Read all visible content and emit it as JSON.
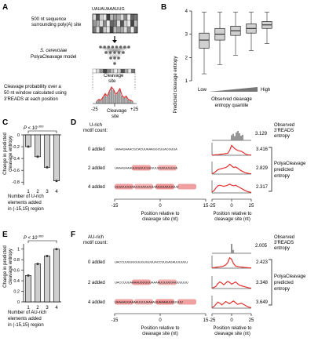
{
  "panels": {
    "A": {
      "letter": "A",
      "sequence_top": "UAUAUAAAUUG",
      "label_500nt": [
        "500 nt sequence",
        "surrounding poly(A) site"
      ],
      "model_label": [
        "S. cerevisiae",
        "PolyaCleavage model"
      ],
      "prob_label": [
        "Cleavage probability over a",
        "50 nt window calculated using",
        "3'READS at each position"
      ],
      "cleavage_label": [
        "Cleavage",
        "site"
      ],
      "tick_minus": "-25",
      "tick_plus": "+25"
    },
    "B": {
      "letter": "B",
      "ylabel": "Predicted cleavage entropy",
      "yticks": [
        "4",
        "3",
        "2",
        "1"
      ],
      "low": "Low",
      "high": "High",
      "xlabel": [
        "Observed cleavage",
        "entropy quantile"
      ]
    },
    "C": {
      "letter": "C",
      "pval": "P < 10",
      "pval_exp": "-300",
      "ylabel": [
        "Change in predicted",
        "cleavage entropy"
      ],
      "yticks": [
        "0",
        "-0.2",
        "-0.4",
        "-0.6",
        "-0.8"
      ],
      "xticks": [
        "1",
        "2",
        "3",
        "4"
      ],
      "xlabel": [
        "Number of U-rich",
        "elements added",
        "in (-15,15) region"
      ]
    },
    "D": {
      "letter": "D",
      "motif_label": [
        "U-rich",
        "motif count:"
      ],
      "rows": [
        {
          "label": "0 added",
          "seq": "UAAAUAAACGCACUUAAAGGCUUACGUUA",
          "value": "3.416"
        },
        {
          "label": "2 added",
          "seq": "UAAAUAAAUUUUUUCUUUUUUUUUUUUUA",
          "value": "2.829"
        },
        {
          "label": "4 added",
          "seq": "UUUUUUUUUUUUUUUUUUUUUUUUUUUUU",
          "value": "2.317"
        }
      ],
      "observed_value": "3.129",
      "observed_label": [
        "Observed",
        "3'READS",
        "entropy"
      ],
      "predicted_label": [
        "PolyaCleavage",
        "predicted",
        "entropy"
      ],
      "seq_xticks": [
        "-15",
        "0",
        "15"
      ],
      "seq_xlabel": [
        "Position relative to",
        "cleavage site (nt)"
      ],
      "plot_xticks": [
        "-25",
        "0",
        "25"
      ],
      "plot_xlabel": [
        "Position relative to",
        "cleavage site (nt)"
      ]
    },
    "E": {
      "letter": "E",
      "pval": "P < 10",
      "pval_exp": "-300",
      "ylabel": [
        "Change in predicted",
        "cleavage entropy"
      ],
      "yticks": [
        "1",
        "0.8",
        "0.6",
        "0.4",
        "0.2",
        "0"
      ],
      "xticks": [
        "1",
        "2",
        "3",
        "4"
      ],
      "xlabel": [
        "Number of AU-rich",
        "elements added",
        "in (-15,15) region"
      ]
    },
    "F": {
      "letter": "F",
      "motif_label": [
        "AU-rich",
        "motif count:"
      ],
      "rows": [
        {
          "label": "0 added",
          "seq": "UACCUUUUGGUUGUGUUUACCUUGAGAUUUUUU",
          "value": "2.423"
        },
        {
          "label": "2 added",
          "seq": "UACCUUUAAAAUGUUUUAAAAUUUUUGAUUUUUU",
          "value": "3.348"
        },
        {
          "label": "4 added",
          "seq": "UAAAAUGAAAAUUUUAAAAUUAAAAUUUUUUU",
          "value": "3.649"
        }
      ],
      "observed_value": "2.005",
      "observed_label": [
        "Observed",
        "3'READS",
        "entropy"
      ],
      "predicted_label": [
        "PolyaCleavage",
        "predicted",
        "entropy"
      ],
      "seq_xticks": [
        "-15",
        "0",
        "15"
      ],
      "seq_xlabel": [
        "Position relative to",
        "cleavage site (nt)"
      ],
      "plot_xticks": [
        "-25",
        "0",
        "25"
      ],
      "plot_xlabel": [
        "Position relative to",
        "cleavage site (nt)"
      ]
    }
  },
  "chart_data": [
    {
      "panel": "B",
      "type": "box",
      "categories": [
        "q1",
        "q2",
        "q3",
        "q4",
        "q5"
      ],
      "boxes": [
        {
          "min": 1.3,
          "q1": 2.4,
          "median": 2.75,
          "q3": 3.05,
          "max": 3.95
        },
        {
          "min": 1.7,
          "q1": 2.75,
          "median": 3.0,
          "q3": 3.25,
          "max": 3.95
        },
        {
          "min": 2.1,
          "q1": 2.95,
          "median": 3.15,
          "q3": 3.35,
          "max": 3.95
        },
        {
          "min": 2.3,
          "q1": 3.05,
          "median": 3.25,
          "q3": 3.45,
          "max": 3.95
        },
        {
          "min": 2.6,
          "q1": 3.25,
          "median": 3.4,
          "q3": 3.55,
          "max": 3.95
        }
      ],
      "ylim": [
        1,
        4
      ],
      "grid": false
    },
    {
      "panel": "C",
      "type": "bar",
      "categories": [
        "1",
        "2",
        "3",
        "4"
      ],
      "values": [
        -0.2,
        -0.37,
        -0.55,
        -0.78
      ],
      "ylim": [
        -0.85,
        0
      ],
      "colors": {
        "bar": "#cfcfcf",
        "point": "#333333"
      }
    },
    {
      "panel": "E",
      "type": "bar",
      "categories": [
        "1",
        "2",
        "3",
        "4"
      ],
      "values": [
        0.5,
        0.72,
        0.87,
        1.0
      ],
      "ylim": [
        0,
        1.1
      ],
      "colors": {
        "bar": "#cfcfcf",
        "point": "#333333"
      }
    },
    {
      "panel": "D",
      "type": "line",
      "x_range": [
        -25,
        25
      ],
      "observed_bars": [
        {
          "x": 0,
          "h": 0.55
        },
        {
          "x": 2,
          "h": 0.7
        },
        {
          "x": 4,
          "h": 0.45
        },
        {
          "x": 6,
          "h": 0.85
        },
        {
          "x": 8,
          "h": 1.0
        },
        {
          "x": 10,
          "h": 0.75
        },
        {
          "x": 12,
          "h": 0.5
        },
        {
          "x": 14,
          "h": 0.6
        }
      ],
      "series": [
        {
          "values": [
            0.02,
            0.03,
            0.05,
            0.05,
            0.08,
            0.1,
            0.12,
            0.15,
            0.18,
            0.45,
            0.9,
            0.7,
            0.55,
            0.45,
            0.4,
            0.35,
            0.25,
            0.12,
            0.05,
            0.03,
            0.02
          ],
          "color": "#e53030"
        },
        {
          "values": [
            0.05,
            0.1,
            0.25,
            0.4,
            0.45,
            0.5,
            0.55,
            0.6,
            0.7,
            0.9,
            0.75,
            0.6,
            0.65,
            0.55,
            0.4,
            0.3,
            0.2,
            0.12,
            0.08,
            0.05,
            0.03
          ],
          "color": "#e53030"
        },
        {
          "values": [
            0.08,
            0.2,
            0.45,
            0.65,
            0.7,
            0.65,
            0.6,
            0.65,
            0.7,
            0.8,
            0.7,
            0.65,
            0.7,
            0.6,
            0.5,
            0.4,
            0.3,
            0.2,
            0.12,
            0.08,
            0.05
          ],
          "color": "#e53030"
        }
      ]
    },
    {
      "panel": "F",
      "type": "line",
      "x_range": [
        -25,
        25
      ],
      "observed_bars": [
        {
          "x": 0,
          "h": 1.0
        },
        {
          "x": 2,
          "h": 0.35
        }
      ],
      "series": [
        {
          "values": [
            0.03,
            0.05,
            0.08,
            0.1,
            0.12,
            0.15,
            0.2,
            0.3,
            0.5,
            0.95,
            0.8,
            0.4,
            0.2,
            0.15,
            0.12,
            0.1,
            0.08,
            0.06,
            0.05,
            0.03,
            0.02
          ],
          "color": "#e53030"
        },
        {
          "values": [
            0.05,
            0.1,
            0.2,
            0.45,
            0.6,
            0.5,
            0.35,
            0.5,
            0.65,
            0.55,
            0.4,
            0.5,
            0.6,
            0.45,
            0.3,
            0.25,
            0.2,
            0.15,
            0.1,
            0.06,
            0.04
          ],
          "color": "#e53030"
        },
        {
          "values": [
            0.05,
            0.15,
            0.35,
            0.55,
            0.45,
            0.3,
            0.45,
            0.6,
            0.5,
            0.4,
            0.55,
            0.65,
            0.5,
            0.35,
            0.4,
            0.45,
            0.35,
            0.25,
            0.15,
            0.08,
            0.05
          ],
          "color": "#e53030"
        }
      ]
    }
  ]
}
